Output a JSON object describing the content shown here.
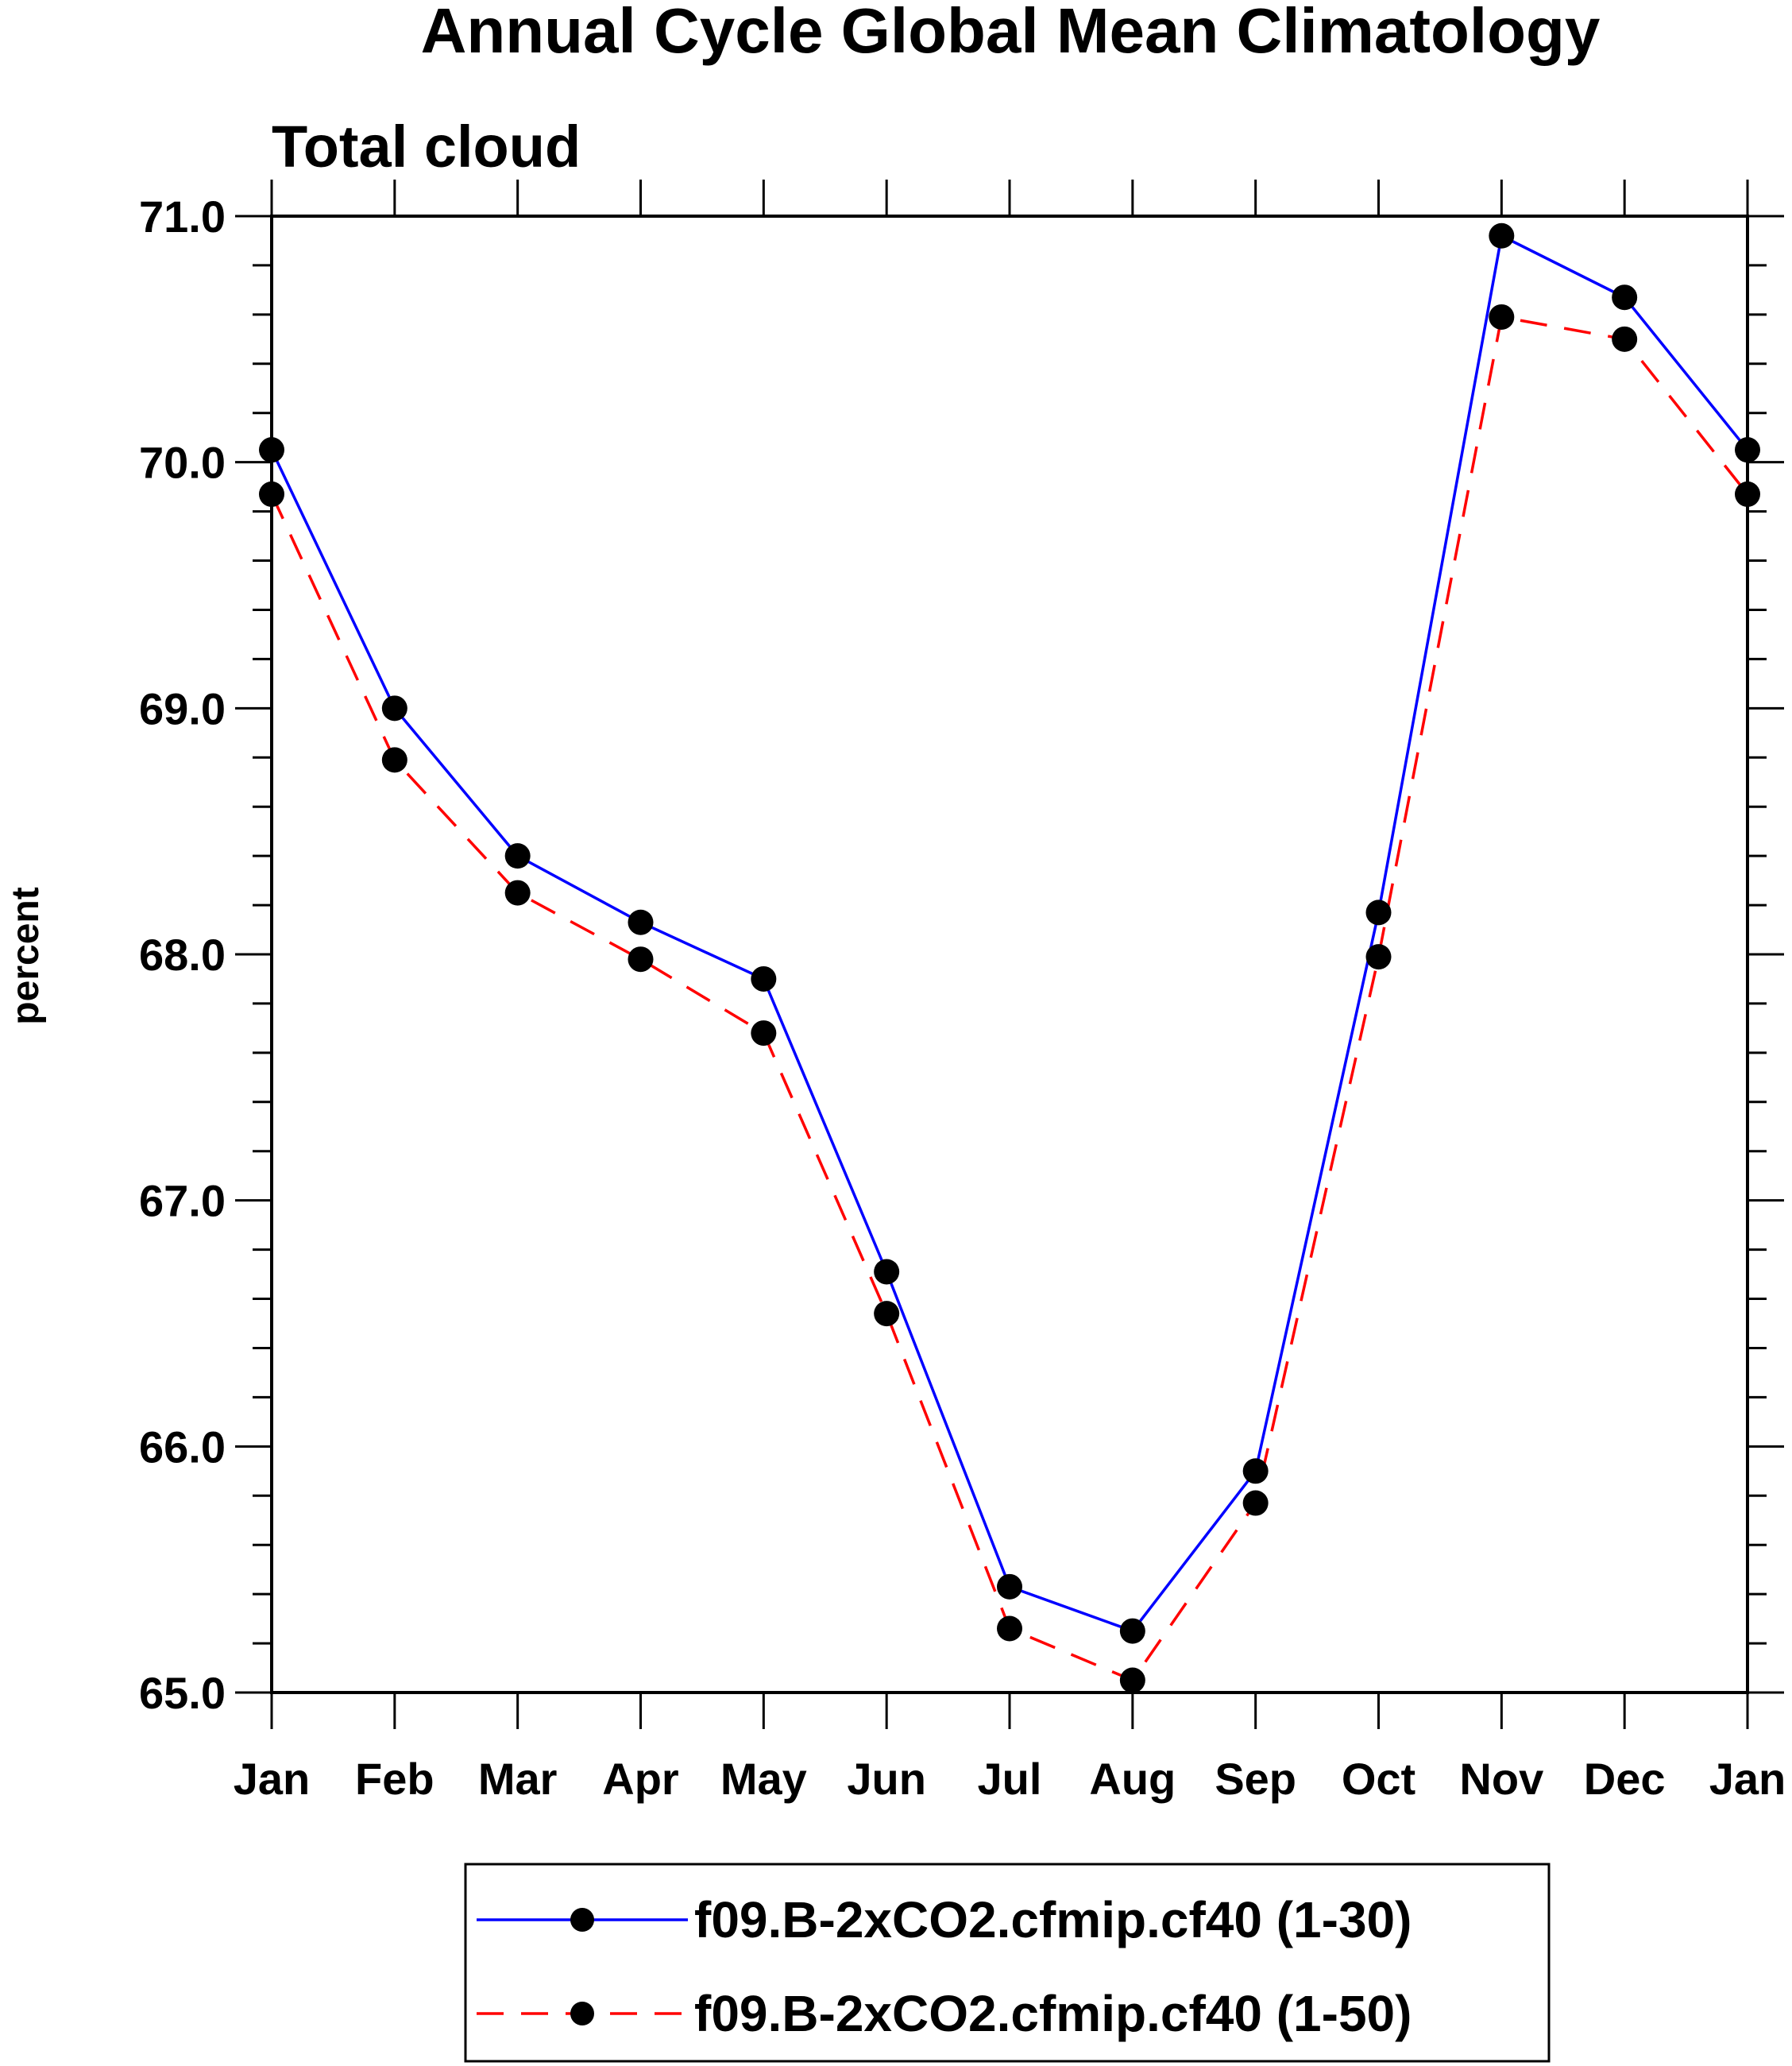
{
  "chart_data": {
    "type": "line",
    "title": "Annual Cycle Global Mean Climatology",
    "subtitle": "Total cloud",
    "xlabel": "",
    "ylabel": "percent",
    "categories": [
      "Jan",
      "Feb",
      "Mar",
      "Apr",
      "May",
      "Jun",
      "Jul",
      "Aug",
      "Sep",
      "Oct",
      "Nov",
      "Dec",
      "Jan"
    ],
    "ylim": [
      65.0,
      71.0
    ],
    "yticks": [
      "65.0",
      "66.0",
      "67.0",
      "68.0",
      "69.0",
      "70.0",
      "71.0"
    ],
    "grid": false,
    "legend_position": "bottom",
    "series": [
      {
        "name": "f09.B-2xCO2.cfmip.cf40 (1-30)",
        "color": "#0000ff",
        "dash": "solid",
        "marker": "filled-circle",
        "values": [
          70.05,
          69.0,
          68.4,
          68.13,
          67.9,
          66.71,
          65.43,
          65.25,
          65.9,
          68.17,
          70.92,
          70.67,
          70.05
        ]
      },
      {
        "name": "f09.B-2xCO2.cfmip.cf40 (1-50)",
        "color": "#ff0000",
        "dash": "dashed",
        "marker": "filled-circle",
        "values": [
          69.87,
          68.79,
          68.25,
          67.98,
          67.68,
          66.54,
          65.26,
          65.05,
          65.77,
          67.99,
          70.59,
          70.5,
          69.87
        ]
      }
    ]
  }
}
